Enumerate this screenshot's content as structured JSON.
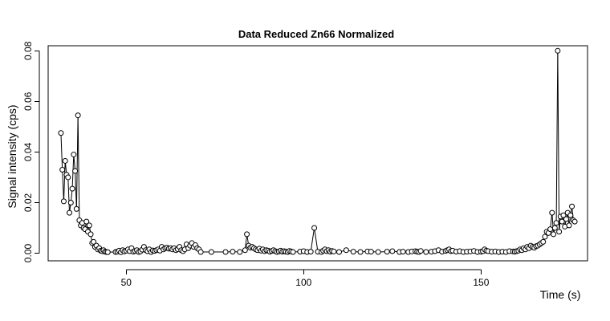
{
  "chart_data": {
    "type": "scatter",
    "title": "Data Reduced Zn66 Normalized",
    "xlabel": "Time (s)",
    "ylabel": "Signal intensity (cps)",
    "xlim": [
      28,
      180
    ],
    "ylim": [
      -0.003,
      0.082
    ],
    "x_ticks": [
      50,
      100,
      150
    ],
    "y_ticks": [
      0.0,
      0.02,
      0.04,
      0.06,
      0.08
    ],
    "x_tick_labels": [
      "50",
      "100",
      "150"
    ],
    "y_tick_labels": [
      "0.00",
      "0.02",
      "0.04",
      "0.06",
      "0.08"
    ],
    "grid": false,
    "legend": "none",
    "series": [
      {
        "name": "",
        "x": [
          31.6,
          32.0,
          32.4,
          32.8,
          33.2,
          33.6,
          34.0,
          34.4,
          34.8,
          35.2,
          35.6,
          36.0,
          36.4,
          36.8,
          37.2,
          37.6,
          38.0,
          38.4,
          38.8,
          39.2,
          39.6,
          40.0,
          40.4,
          40.8,
          41.2,
          41.6,
          42.0,
          42.4,
          42.8,
          43.2,
          43.6,
          44.0,
          44.4,
          44.8,
          47.0,
          47.5,
          48.0,
          48.5,
          49.0,
          49.5,
          50.0,
          50.5,
          51.0,
          51.5,
          52.0,
          52.5,
          53.0,
          53.5,
          54.0,
          54.5,
          55.0,
          55.5,
          56.0,
          56.5,
          57.0,
          57.5,
          58.0,
          58.5,
          59.0,
          59.5,
          60.0,
          60.5,
          61.0,
          61.5,
          62.0,
          62.5,
          63.0,
          63.5,
          64.0,
          64.5,
          65.0,
          65.5,
          66.0,
          66.5,
          67.0,
          67.5,
          68.0,
          68.5,
          69.0,
          69.5,
          70.0,
          70.5,
          71.0,
          74.0,
          78.0,
          80.0,
          82.0,
          83.5,
          84.0,
          84.5,
          85.0,
          85.5,
          86.0,
          86.5,
          87.0,
          87.5,
          88.0,
          88.5,
          89.0,
          89.5,
          90.0,
          90.5,
          91.0,
          91.5,
          92.0,
          92.5,
          93.0,
          93.5,
          94.0,
          94.5,
          95.0,
          95.5,
          96.0,
          96.5,
          97.0,
          99.0,
          100.0,
          101.0,
          102.0,
          103.0,
          104.0,
          105.0,
          105.5,
          106.0,
          106.5,
          107.0,
          107.5,
          108.0,
          108.5,
          110.0,
          112.0,
          114.0,
          116.0,
          118.0,
          119.0,
          121.0,
          123.5,
          125.0,
          127.0,
          128.0,
          129.5,
          130.5,
          131.5,
          132.0,
          132.5,
          133.0,
          134.5,
          136.0,
          137.0,
          138.0,
          139.0,
          140.0,
          140.5,
          141.0,
          141.5,
          142.0,
          143.0,
          144.0,
          145.0,
          146.0,
          147.0,
          148.0,
          149.0,
          150.0,
          150.5,
          151.0,
          151.5,
          152.0,
          153.0,
          154.0,
          155.0,
          156.0,
          157.0,
          158.0,
          159.0,
          159.5,
          160.0,
          160.5,
          161.0,
          161.5,
          162.0,
          162.5,
          163.0,
          163.5,
          164.0,
          164.5,
          165.0,
          165.5,
          166.0,
          166.5,
          167.0,
          167.5,
          168.0,
          168.5,
          169.0,
          169.5,
          170.0,
          170.4,
          170.8,
          171.2,
          171.6,
          172.0,
          172.4,
          172.8,
          173.2,
          173.6,
          174.0,
          174.4,
          174.8,
          175.2,
          175.6,
          176.0,
          176.4
        ],
        "y": [
          0.0475,
          0.033,
          0.0205,
          0.0365,
          0.031,
          0.03,
          0.016,
          0.02,
          0.0255,
          0.039,
          0.0325,
          0.0175,
          0.0545,
          0.013,
          0.011,
          0.012,
          0.01,
          0.0095,
          0.0125,
          0.0085,
          0.011,
          0.0075,
          0.004,
          0.0045,
          0.0025,
          0.003,
          0.0015,
          0.002,
          0.001,
          0.0008,
          0.0012,
          0.0006,
          0.0005,
          0.0004,
          0.0005,
          0.0006,
          0.001,
          0.0004,
          0.0012,
          0.0007,
          0.001,
          0.0015,
          0.0008,
          0.002,
          0.0006,
          0.0009,
          0.0012,
          0.0005,
          0.0007,
          0.0014,
          0.0025,
          0.0012,
          0.0008,
          0.0015,
          0.0005,
          0.0011,
          0.0009,
          0.0012,
          0.0015,
          0.001,
          0.0025,
          0.0015,
          0.002,
          0.0022,
          0.0018,
          0.002,
          0.0015,
          0.002,
          0.0012,
          0.0016,
          0.0025,
          0.0012,
          0.0008,
          0.0015,
          0.0035,
          0.002,
          0.003,
          0.004,
          0.0025,
          0.0032,
          0.002,
          0.0015,
          0.0005,
          0.0005,
          0.0005,
          0.0006,
          0.0005,
          0.0012,
          0.0075,
          0.003,
          0.0022,
          0.0025,
          0.002,
          0.0015,
          0.0012,
          0.0018,
          0.001,
          0.0015,
          0.0008,
          0.0012,
          0.001,
          0.0006,
          0.0009,
          0.0012,
          0.0008,
          0.0005,
          0.0007,
          0.001,
          0.0006,
          0.0008,
          0.0006,
          0.0005,
          0.0009,
          0.0007,
          0.0005,
          0.0006,
          0.0008,
          0.0005,
          0.0006,
          0.01,
          0.0006,
          0.0005,
          0.001,
          0.0015,
          0.0008,
          0.0012,
          0.0006,
          0.0009,
          0.0007,
          0.0005,
          0.0012,
          0.0006,
          0.0005,
          0.0007,
          0.0006,
          0.0005,
          0.0006,
          0.0008,
          0.0005,
          0.0006,
          0.0005,
          0.0007,
          0.0008,
          0.0006,
          0.0005,
          0.0009,
          0.0005,
          0.0006,
          0.0008,
          0.0012,
          0.0006,
          0.0009,
          0.0012,
          0.0015,
          0.0008,
          0.001,
          0.0006,
          0.0008,
          0.0005,
          0.0006,
          0.0007,
          0.0009,
          0.0005,
          0.0006,
          0.0008,
          0.0015,
          0.001,
          0.0008,
          0.0006,
          0.0007,
          0.0005,
          0.0006,
          0.0005,
          0.0008,
          0.0007,
          0.0006,
          0.0008,
          0.001,
          0.0015,
          0.0012,
          0.002,
          0.0015,
          0.0025,
          0.002,
          0.003,
          0.0025,
          0.0022,
          0.0028,
          0.003,
          0.0035,
          0.004,
          0.0045,
          0.0065,
          0.0085,
          0.008,
          0.0095,
          0.016,
          0.0075,
          0.01,
          0.012,
          0.08,
          0.0085,
          0.0145,
          0.0125,
          0.015,
          0.0105,
          0.0135,
          0.016,
          0.011,
          0.015,
          0.0185,
          0.013,
          0.0125
        ]
      }
    ]
  }
}
